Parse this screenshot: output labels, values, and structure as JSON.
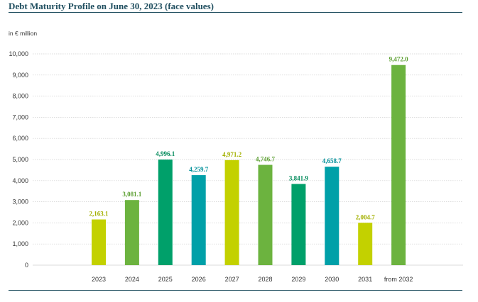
{
  "title": "Debt Maturity Profile on June 30, 2023 (face values)",
  "unit_label": "in € million",
  "colors": {
    "title": "#1f4e5f",
    "rule": "#1f4e5f",
    "grid": "#cfcfcf",
    "axis_text": "#333333"
  },
  "chart_data": {
    "type": "bar",
    "title": "Debt Maturity Profile on June 30, 2023 (face values)",
    "ylabel": "in € million",
    "xlabel": "",
    "categories": [
      "2023",
      "2024",
      "2025",
      "2026",
      "2027",
      "2028",
      "2029",
      "2030",
      "2031",
      "from 2032"
    ],
    "values": [
      2163.1,
      3081.1,
      4996.1,
      4259.7,
      4971.2,
      4746.7,
      3841.9,
      4658.7,
      2004.7,
      9472.0
    ],
    "value_labels": [
      "2,163.1",
      "3,081.1",
      "4,996.1",
      "4,259.7",
      "4,971.2",
      "4,746.7",
      "3,841.9",
      "4,658.7",
      "2,004.7",
      "9,472.0"
    ],
    "bar_colors": [
      "#c3d100",
      "#6cb33f",
      "#00a06a",
      "#00a0a8",
      "#c3d100",
      "#6cb33f",
      "#00a06a",
      "#00a0a8",
      "#c3d100",
      "#6cb33f"
    ],
    "label_colors": [
      "#a3b000",
      "#5a9e2f",
      "#008a5a",
      "#00909a",
      "#a3b000",
      "#5a9e2f",
      "#008a5a",
      "#00909a",
      "#a3b000",
      "#5a9e2f"
    ],
    "yticks": [
      "0",
      "1,000",
      "2,000",
      "3,000",
      "4,000",
      "5,000",
      "6,000",
      "7,000",
      "8,000",
      "9,000",
      "10,000"
    ],
    "ytick_values": [
      0,
      1000,
      2000,
      3000,
      4000,
      5000,
      6000,
      7000,
      8000,
      9000,
      10000
    ],
    "ylim": [
      0,
      10000
    ],
    "grid": true,
    "legend": "none"
  }
}
